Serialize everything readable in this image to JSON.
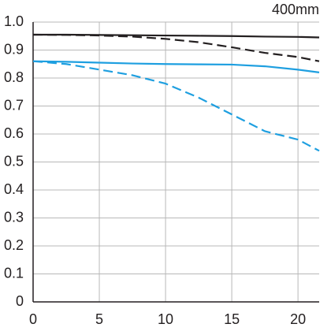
{
  "chart_data": {
    "type": "line",
    "title": "400mm",
    "x": [
      0,
      2.5,
      5,
      7.5,
      10,
      12.5,
      15,
      17.5,
      20,
      21.6
    ],
    "series": [
      {
        "color": "#231f20",
        "dash": false,
        "values": [
          0.955,
          0.955,
          0.954,
          0.953,
          0.952,
          0.951,
          0.95,
          0.948,
          0.947,
          0.945
        ]
      },
      {
        "color": "#231f20",
        "dash": true,
        "values": [
          0.955,
          0.954,
          0.952,
          0.948,
          0.94,
          0.928,
          0.91,
          0.89,
          0.875,
          0.86
        ]
      },
      {
        "color": "#1e9fe0",
        "dash": false,
        "values": [
          0.86,
          0.858,
          0.855,
          0.852,
          0.85,
          0.849,
          0.848,
          0.842,
          0.83,
          0.82
        ]
      },
      {
        "color": "#1e9fe0",
        "dash": true,
        "values": [
          0.86,
          0.85,
          0.83,
          0.81,
          0.78,
          0.73,
          0.67,
          0.61,
          0.58,
          0.54
        ]
      }
    ],
    "xlim": [
      0,
      21.6
    ],
    "xticks": [
      0,
      5,
      10,
      15,
      20
    ],
    "ylim": [
      0,
      1
    ],
    "yticks": [
      0,
      0.1,
      0.2,
      0.3,
      0.4,
      0.5,
      0.6,
      0.7,
      0.8,
      0.9,
      {
        "value": 1,
        "label": "1.0"
      }
    ],
    "grid": true
  }
}
